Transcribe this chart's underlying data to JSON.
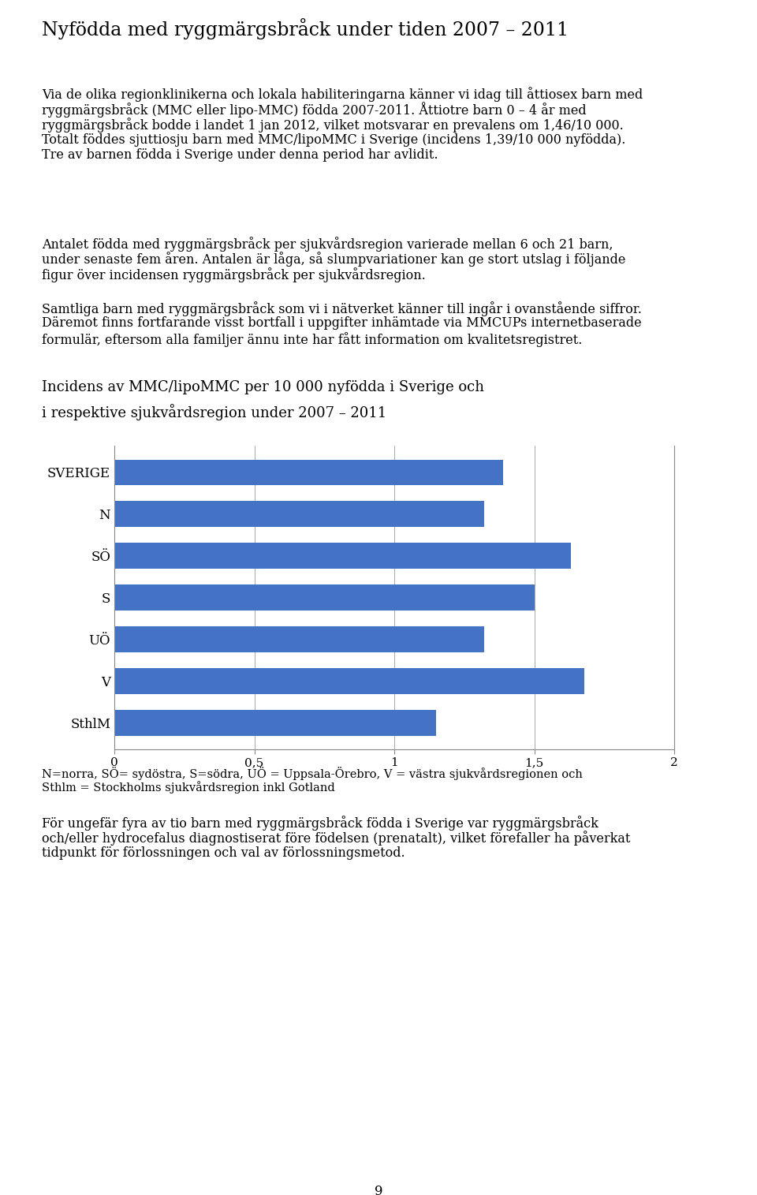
{
  "title": "Nyfödda med ryggmärgsbråck under tiden 2007 – 2011",
  "para1_line1": "Via de olika regionklinikerna och lokala habiliteringarna känner vi idag till åttiosex barn med",
  "para1_line2": "ryggmärgsbråck (MMC eller lipo-MMC) födda 2007-2011. Åttiotre barn 0 – 4 år med",
  "para1_line3": "ryggmärgsbråck bodde i landet 1 jan 2012, vilket motsvarar en prevalens om 1,46/10 000.",
  "para1_line4": "Totalt föddes sjuttiosju barn med MMC/lipoMMC i Sverige (incidens 1,39/10 000 nyfödda).",
  "para1_line5": "Tre av barnen födda i Sverige under denna period har avlidit.",
  "para2_line1": "Antalet födda med ryggmärgsbråck per sjukvårdsregion varierade mellan 6 och 21 barn,",
  "para2_line2": "under senaste fem åren. Antalen är låga, så slumpvariationer kan ge stort utslag i följande",
  "para2_line3": "figur över incidensen ryggmärgsbråck per sjukvårdsregion.",
  "para3_line1": "Samtliga barn med ryggmärgsbråck som vi i nätverket känner till ingår i ovanstående siffror.",
  "para3_line2": "Däremot finns fortfarande visst bortfall i uppgifter inhämtade via MMCUPs internetbaserade",
  "para3_line3": "formulär, eftersom alla familjer ännu inte har fått information om kvalitetsregistret.",
  "chart_title_line1": "Incidens av MMC/lipoMMC per 10 000 nyfödda i Sverige och",
  "chart_title_line2": "i respektive sjukvårdsregion under 2007 – 2011",
  "categories": [
    "SVERIGE",
    "N",
    "SÖ",
    "S",
    "UÖ",
    "V",
    "SthlM"
  ],
  "values": [
    1.39,
    1.32,
    1.63,
    1.5,
    1.32,
    1.68,
    1.15
  ],
  "bar_color": "#4472C4",
  "xlim": [
    0,
    2
  ],
  "xticks": [
    0,
    0.5,
    1,
    1.5,
    2
  ],
  "xtick_labels": [
    "0",
    "0,5",
    "1",
    "1,5",
    "2"
  ],
  "footnote_line1": "N=norra, SÖ= sydöstra, S=södra, UÖ = Uppsala-Örebro, V = västra sjukvårdsregionen och",
  "footnote_line2": "Sthlm = Stockholms sjukvårdsregion inkl Gotland",
  "para4_line1": "För ungefär fyra av tio barn med ryggmärgsbråck födda i Sverige var ryggmärgsbråck",
  "para4_line2": "och/eller hydrocefalus diagnostiserat före födelsen (prenatalt), vilket förefaller ha påverkat",
  "para4_line3": "tidpunkt för förlossningen och val av förlossningsmetod.",
  "page_number": "9",
  "background_color": "#ffffff",
  "text_color": "#000000",
  "font_size_title": 17,
  "font_size_body": 11.5,
  "font_size_chart_title": 13,
  "font_size_tick": 11,
  "font_size_footnote": 10.5
}
